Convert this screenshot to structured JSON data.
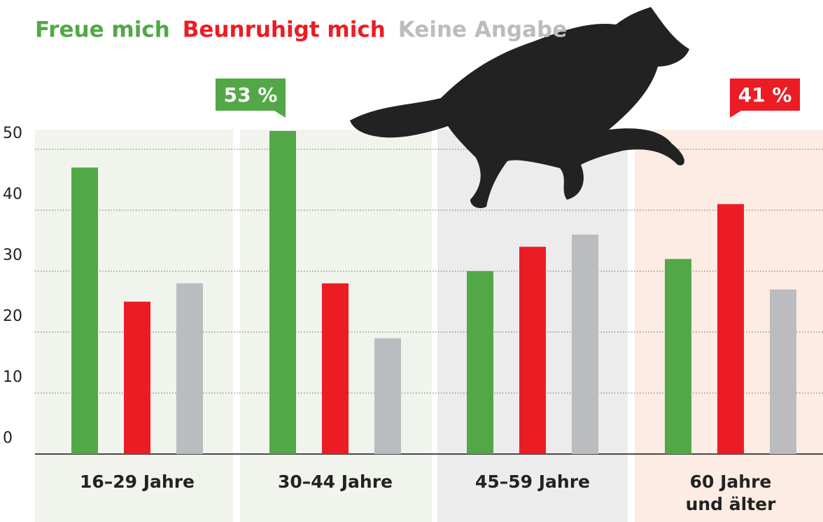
{
  "chart_data": {
    "type": "bar",
    "categories": [
      "16–29 Jahre",
      "30–44 Jahre",
      "45–59 Jahre",
      "60 Jahre\nund älter"
    ],
    "series": [
      {
        "name": "Freue mich",
        "color": "#52a846",
        "values": [
          47,
          53,
          30,
          32
        ],
        "value_labels": [
          null,
          "53 %",
          null,
          null
        ]
      },
      {
        "name": "Beunruhigt mich",
        "color": "#ec1c24",
        "values": [
          25,
          28,
          34,
          41
        ],
        "value_labels": [
          null,
          null,
          null,
          "41 %"
        ]
      },
      {
        "name": "Keine Angabe",
        "color": "#bbbcc0",
        "values": [
          28,
          19,
          36,
          27
        ]
      }
    ],
    "ylim": [
      0,
      55
    ],
    "yticks": [
      0,
      10,
      20,
      30,
      40,
      50
    ],
    "grid": true
  }
}
